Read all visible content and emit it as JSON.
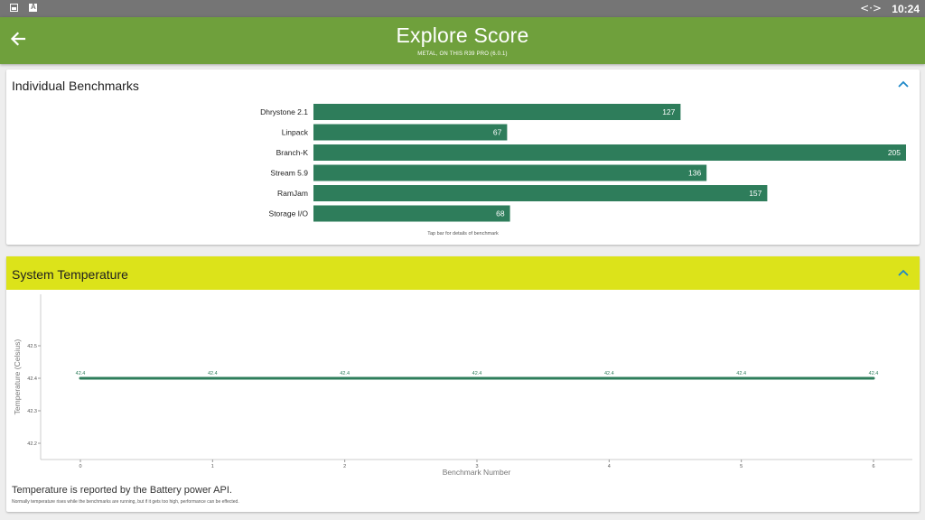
{
  "status_bar": {
    "time": "10:24",
    "arrows_glyph": "<·>"
  },
  "app_bar": {
    "title": "Explore Score",
    "subtitle": "METAL, ON THIS R39 PRO (6.0.1)",
    "back_icon": "arrow-left-icon"
  },
  "benchmarks": {
    "title": "Individual Benchmarks",
    "hint": "Tap bar for details of benchmark",
    "collapse_icon": "chevron-up-icon",
    "bar_color": "#2e7d5b",
    "chart_data": {
      "type": "bar",
      "orientation": "horizontal",
      "categories": [
        "Dhrystone 2.1",
        "Linpack",
        "Branch-K",
        "Stream 5.9",
        "RamJam",
        "Storage I/O"
      ],
      "values": [
        127,
        67,
        205,
        136,
        157,
        68
      ],
      "xlim": [
        0,
        205
      ]
    }
  },
  "temperature": {
    "title": "System Temperature",
    "header_color": "#dce31a",
    "collapse_icon": "chevron-up-icon",
    "note": "Temperature is reported by the Battery power API.",
    "subnote": "Normally temperature rises while the benchmarks are running, but if it gets too high, performance can be effected.",
    "line_color": "#2e7d5b",
    "chart_data": {
      "type": "line",
      "x": [
        0,
        1,
        2,
        3,
        4,
        5,
        6
      ],
      "series": [
        {
          "values": [
            42.4,
            42.4,
            42.4,
            42.4,
            42.4,
            42.4,
            42.4
          ]
        }
      ],
      "point_labels": [
        "42.4",
        "42.4",
        "42.4",
        "42.4",
        "42.4",
        "42.4",
        "42.4"
      ],
      "xlabel": "Benchmark Number",
      "ylabel": "Temperature (Celsius)",
      "x_ticks": [
        "0",
        "1",
        "2",
        "3",
        "4",
        "5",
        "6"
      ],
      "y_ticks": [
        "42.5",
        "42.4",
        "42.3",
        "42.2"
      ],
      "y_tick_values": [
        42.5,
        42.4,
        42.3,
        42.2
      ],
      "xlim": [
        0,
        6
      ],
      "ylim": [
        42.2,
        42.5
      ]
    }
  }
}
